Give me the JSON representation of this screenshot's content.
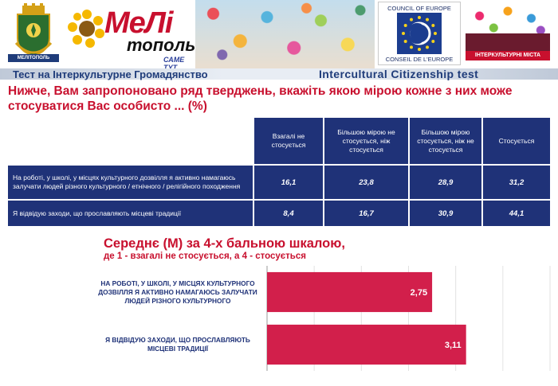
{
  "header": {
    "city_logo_text": "МЕЛІТОПОЛЬ",
    "brand_title": "МеЛі",
    "brand_title2": "тополь",
    "brand_tagline": "САМЕ ТУТ...",
    "coe_top": "COUNCIL OF EUROPE",
    "coe_bottom": "CONSEIL DE L'EUROPE",
    "intercultural_cities": "ІНТЕРКУЛЬТУРНІ МІСТА",
    "subtitle_ua": "Тест на Інтеркультурне Громадянство",
    "subtitle_en": "Intercultural Citizenship test"
  },
  "question": "Нижче, Вам запропоновано ряд тверджень, вкажіть якою мірою кожне з них може стосуватися Вас особисто ... (%)",
  "table": {
    "columns": [
      "Взагалі не стосується",
      "Більшою мірою не стосується, ніж стосується",
      "Більшою мірою стосується, ніж не стосується",
      "Стосується"
    ],
    "rows": [
      {
        "label": "На роботі, у школі, у місцях культурного дозвілля я активно намагаюсь залучати людей різного культурного / етнічного / релігійного походження",
        "values": [
          "16,1",
          "23,8",
          "28,9",
          "31,2"
        ]
      },
      {
        "label": "Я відвідую заходи, що прославляють місцеві традиції",
        "values": [
          "8,4",
          "16,7",
          "30,9",
          "44,1"
        ]
      }
    ]
  },
  "mean_title": "Середнє (М) за 4-х бальною шкалою,",
  "mean_subtitle": "де 1 - взагалі не стосується, а 4 - стосується",
  "chart_data": {
    "type": "bar",
    "orientation": "horizontal",
    "categories": [
      "НА РОБОТІ, У ШКОЛІ, У МІСЦЯХ КУЛЬТУРНОГО ДОЗВІЛЛЯ Я АКТИВНО НАМАГАЮСЬ ЗАЛУЧАТИ ЛЮДЕЙ РІЗНОГО КУЛЬТУРНОГО",
      "Я ВІДВІДУЮ ЗАХОДИ, ЩО ПРОСЛАВЛЯЮТЬ МІСЦЕВІ ТРАДИЦІЇ"
    ],
    "category_lines": [
      [
        "НА РОБОТІ, У ШКОЛІ, У МІСЦЯХ КУЛЬТУРНОГО",
        "ДОЗВІЛЛЯ Я АКТИВНО НАМАГАЮСЬ ЗАЛУЧАТИ",
        "ЛЮДЕЙ РІЗНОГО КУЛЬТУРНОГО"
      ],
      [
        "Я ВІДВІДУЮ ЗАХОДИ, ЩО ПРОСЛАВЛЯЮТЬ",
        "МІСЦЕВІ ТРАДИЦІЇ"
      ]
    ],
    "values": [
      2.75,
      3.11
    ],
    "data_labels": [
      "2,75",
      "3,11"
    ],
    "xlim": [
      1,
      4
    ],
    "grid": true,
    "colors": {
      "bar": "#d21f4b",
      "label": "#1f3278"
    }
  }
}
